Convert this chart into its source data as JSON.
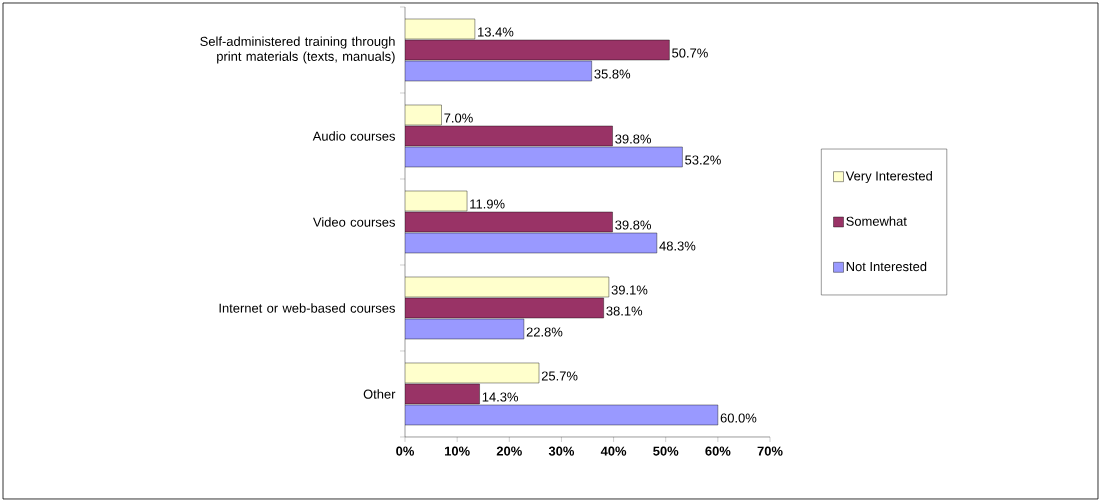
{
  "chart_data": {
    "type": "bar",
    "orientation": "horizontal",
    "categories": [
      "Self-administered training through print materials (texts, manuals)",
      "Audio courses",
      "Video courses",
      "Internet or web-based courses",
      "Other"
    ],
    "series": [
      {
        "name": "Very Interested",
        "color": "#ffffcc",
        "values": [
          13.4,
          7.0,
          11.9,
          39.1,
          25.7
        ],
        "value_labels": [
          "13.4%",
          "7.0%",
          "11.9%",
          "39.1%",
          "25.7%"
        ]
      },
      {
        "name": "Somewhat",
        "color": "#993366",
        "values": [
          50.7,
          39.8,
          39.8,
          38.1,
          14.3
        ],
        "value_labels": [
          "50.7%",
          "39.8%",
          "39.8%",
          "38.1%",
          "14.3%"
        ]
      },
      {
        "name": "Not Interested",
        "color": "#9999ff",
        "values": [
          35.8,
          53.2,
          48.3,
          22.8,
          60.0
        ],
        "value_labels": [
          "35.8%",
          "53.2%",
          "48.3%",
          "22.8%",
          "60.0%"
        ]
      }
    ],
    "xlim": [
      0,
      70
    ],
    "xticks": [
      {
        "value": 0,
        "label": "0%"
      },
      {
        "value": 10,
        "label": "10%"
      },
      {
        "value": 20,
        "label": "20%"
      },
      {
        "value": 30,
        "label": "30%"
      },
      {
        "value": 40,
        "label": "40%"
      },
      {
        "value": 50,
        "label": "50%"
      },
      {
        "value": 60,
        "label": "60%"
      },
      {
        "value": 70,
        "label": "70%"
      }
    ],
    "legend": "right",
    "grid": false
  }
}
